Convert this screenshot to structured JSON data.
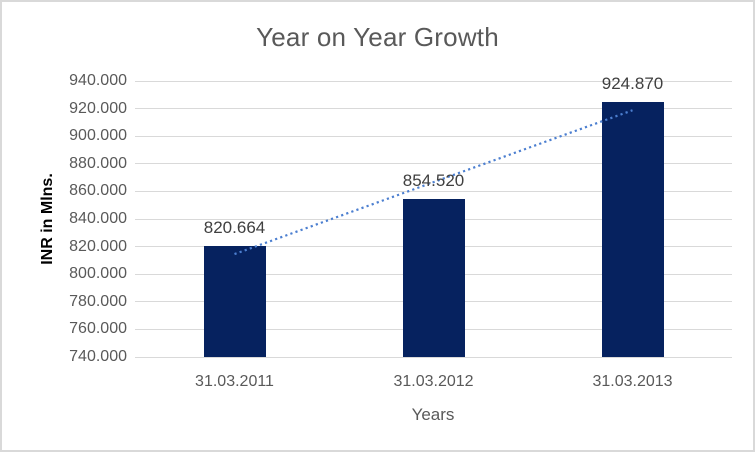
{
  "chart_data": {
    "type": "bar",
    "title": "Year on Year Growth",
    "xlabel": "Years",
    "ylabel": "INR in Mlns.",
    "categories": [
      "31.03.2011",
      "31.03.2012",
      "31.03.2013"
    ],
    "values": [
      820664,
      854520,
      924870
    ],
    "value_labels": [
      "820.664",
      "854.520",
      "924.870"
    ],
    "ylim": [
      740000,
      940000
    ],
    "yticks": [
      {
        "value": 740000,
        "label": "740.000"
      },
      {
        "value": 760000,
        "label": "760.000"
      },
      {
        "value": 780000,
        "label": "780.000"
      },
      {
        "value": 800000,
        "label": "800.000"
      },
      {
        "value": 820000,
        "label": "820.000"
      },
      {
        "value": 840000,
        "label": "840.000"
      },
      {
        "value": 860000,
        "label": "860.000"
      },
      {
        "value": 880000,
        "label": "880.000"
      },
      {
        "value": 900000,
        "label": "900.000"
      },
      {
        "value": 920000,
        "label": "920.000"
      },
      {
        "value": 940000,
        "label": "940.000"
      }
    ],
    "grid": true,
    "legend": false,
    "trendline": {
      "type": "linear",
      "style": "dotted",
      "start_value": 814582,
      "end_value": 918788
    },
    "colors": {
      "bar": "#06225F",
      "trendline": "#4C7FD0",
      "gridline": "#D9D9D9",
      "border": "#D9D9D9",
      "background": "#FFFFFF",
      "title_text": "#595959",
      "tick_text": "#595959",
      "data_label_text": "#404040",
      "y_axis_title_text": "#000000",
      "x_axis_title_text": "#595959"
    }
  }
}
